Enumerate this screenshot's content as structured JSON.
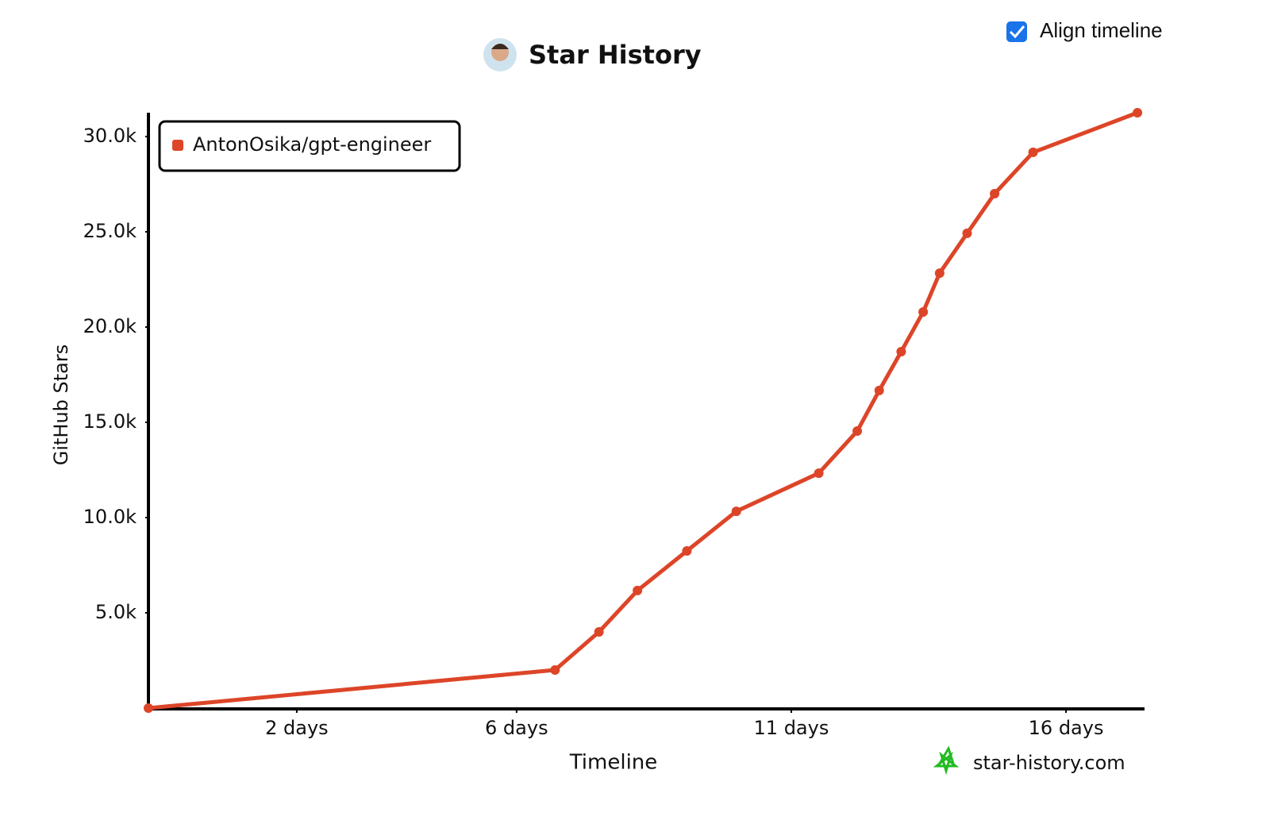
{
  "align_timeline": {
    "label": "Align timeline",
    "checked": true
  },
  "watermark": "star-history.com",
  "chart_data": {
    "type": "line",
    "title": "Star History",
    "x_label": "Timeline",
    "y_label": "GitHub Stars",
    "series": [
      {
        "name": "AntonOsika/gpt-engineer",
        "color": "#dd4528",
        "x": [
          -0.7,
          6.7,
          7.5,
          8.2,
          9.1,
          10.0,
          11.5,
          12.2,
          12.6,
          13.0,
          13.4,
          13.7,
          14.2,
          14.7,
          15.4,
          17.3
        ],
        "values": [
          0,
          2000,
          4000,
          6170,
          8250,
          10330,
          12330,
          14540,
          16670,
          18710,
          20790,
          22830,
          24920,
          27000,
          29170,
          31250
        ]
      }
    ],
    "xlim": [
      -0.7,
      17.4
    ],
    "ylim": [
      0,
      31250
    ],
    "xticks": [
      {
        "value": 2,
        "label": "2 days"
      },
      {
        "value": 6,
        "label": "6 days"
      },
      {
        "value": 11,
        "label": "11 days"
      },
      {
        "value": 16,
        "label": "16 days"
      }
    ],
    "yticks": [
      {
        "value": 5000,
        "label": "5.0k"
      },
      {
        "value": 10000,
        "label": "10.0k"
      },
      {
        "value": 15000,
        "label": "15.0k"
      },
      {
        "value": 20000,
        "label": "20.0k"
      },
      {
        "value": 25000,
        "label": "25.0k"
      },
      {
        "value": 30000,
        "label": "30.0k"
      }
    ],
    "legend": "top-left",
    "grid": false
  }
}
